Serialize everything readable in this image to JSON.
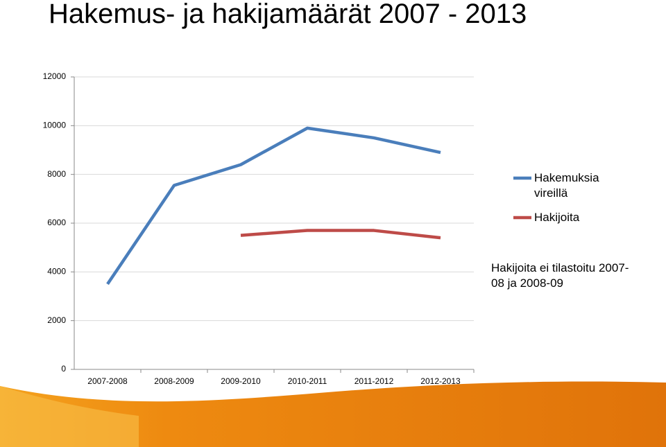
{
  "chart_data": {
    "type": "line",
    "title": "Hakemus- ja hakijamäärät 2007 - 2013",
    "categories": [
      "2007-2008",
      "2008-2009",
      "2009-2010",
      "2010-2011",
      "2011-2012",
      "2012-2013"
    ],
    "series": [
      {
        "name": "Hakemuksia vireillä",
        "color": "#4a7ebb",
        "values": [
          3500,
          7550,
          8400,
          9900,
          9500,
          8900
        ]
      },
      {
        "name": "Hakijoita",
        "color": "#be4b48",
        "values": [
          null,
          null,
          5500,
          5700,
          5700,
          5400
        ]
      }
    ],
    "annotation": "Hakijoita ei tilastoitu 2007-08 ja 2008-09",
    "ylim": [
      0,
      12000
    ],
    "yticks": [
      0,
      2000,
      4000,
      6000,
      8000,
      10000,
      12000
    ],
    "grid": true,
    "legend": "right"
  }
}
